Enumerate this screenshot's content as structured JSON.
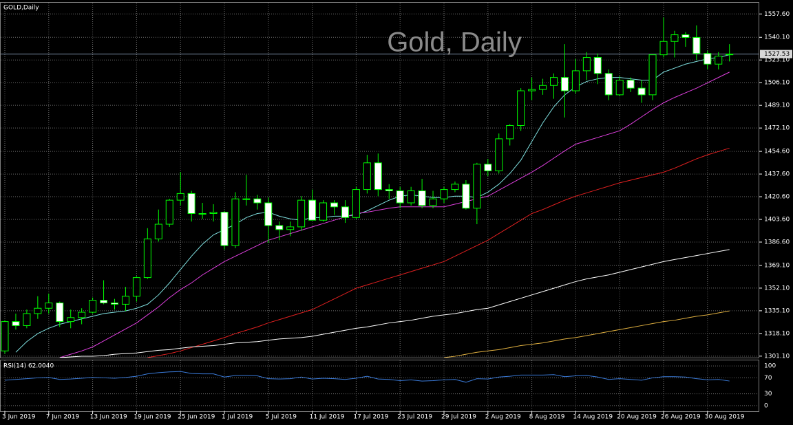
{
  "chart_data": {
    "type": "candlestick",
    "title": "GOLD,Daily",
    "watermark": "Gold, Daily",
    "categories": [
      "3 Jun 2019",
      null,
      null,
      null,
      "7 Jun 2019",
      null,
      null,
      null,
      "13 Jun 2019",
      null,
      null,
      null,
      "19 Jun 2019",
      null,
      null,
      null,
      "25 Jun 2019",
      null,
      null,
      null,
      "1 Jul 2019",
      null,
      null,
      null,
      "5 Jul 2019",
      null,
      null,
      null,
      "11 Jul 2019",
      null,
      null,
      null,
      "17 Jul 2019",
      null,
      null,
      null,
      "23 Jul 2019",
      null,
      null,
      null,
      "29 Jul 2019",
      null,
      null,
      null,
      "2 Aug 2019",
      null,
      null,
      null,
      "8 Aug 2019",
      null,
      null,
      null,
      "14 Aug 2019",
      null,
      null,
      null,
      "20 Aug 2019",
      null,
      null,
      null,
      "26 Aug 2019",
      null,
      null,
      null,
      "30 Aug 2019",
      null,
      null
    ],
    "open": [
      1305,
      1327,
      1324,
      1333,
      1337,
      1341,
      1327,
      1330,
      1334,
      1343,
      1341,
      1340,
      1346,
      1360,
      1389,
      1400,
      1418,
      1423,
      1408,
      1408,
      1409,
      1384,
      1419,
      1419,
      1416,
      1399,
      1396,
      1398,
      1418,
      1403,
      1416,
      1413,
      1405,
      1426,
      1446,
      1426,
      1425,
      1416,
      1425,
      1414,
      1419,
      1426,
      1430,
      1412,
      1445,
      1440,
      1464,
      1474,
      1500,
      1501,
      1504,
      1510,
      1500,
      1515,
      1525,
      1513,
      1497,
      1508,
      1502,
      1497,
      1527,
      1537,
      1542,
      1540,
      1528,
      1520,
      1527
    ],
    "high": [
      1328,
      1333,
      1336,
      1346,
      1348,
      1342,
      1336,
      1337,
      1345,
      1358,
      1344,
      1353,
      1361,
      1397,
      1411,
      1419,
      1439,
      1425,
      1416,
      1415,
      1410,
      1424,
      1437,
      1422,
      1420,
      1402,
      1402,
      1421,
      1426,
      1418,
      1418,
      1418,
      1428,
      1452,
      1453,
      1430,
      1428,
      1428,
      1434,
      1425,
      1428,
      1432,
      1433,
      1446,
      1449,
      1468,
      1475,
      1502,
      1510,
      1509,
      1513,
      1535,
      1524,
      1529,
      1528,
      1516,
      1511,
      1510,
      1508,
      1527,
      1555,
      1545,
      1544,
      1549,
      1530,
      1529,
      1535
    ],
    "low": [
      1303,
      1321,
      1322,
      1329,
      1333,
      1323,
      1322,
      1325,
      1333,
      1340,
      1336,
      1335,
      1342,
      1359,
      1387,
      1398,
      1414,
      1402,
      1404,
      1402,
      1381,
      1382,
      1414,
      1411,
      1386,
      1388,
      1391,
      1395,
      1403,
      1402,
      1407,
      1401,
      1404,
      1423,
      1421,
      1419,
      1412,
      1414,
      1412,
      1412,
      1416,
      1424,
      1411,
      1400,
      1436,
      1438,
      1459,
      1470,
      1493,
      1497,
      1494,
      1480,
      1498,
      1508,
      1505,
      1493,
      1496,
      1499,
      1491,
      1493,
      1525,
      1525,
      1533,
      1523,
      1516,
      1516,
      1522
    ],
    "close": [
      1327,
      1324,
      1333,
      1337,
      1341,
      1327,
      1330,
      1334,
      1343,
      1341,
      1340,
      1346,
      1360,
      1389,
      1400,
      1418,
      1423,
      1408,
      1408,
      1409,
      1384,
      1419,
      1419,
      1416,
      1399,
      1396,
      1398,
      1418,
      1403,
      1416,
      1413,
      1405,
      1426,
      1446,
      1426,
      1425,
      1416,
      1425,
      1414,
      1419,
      1426,
      1430,
      1412,
      1445,
      1440,
      1464,
      1474,
      1500,
      1501,
      1504,
      1510,
      1500,
      1515,
      1525,
      1513,
      1497,
      1508,
      1502,
      1497,
      1527,
      1537,
      1542,
      1540,
      1528,
      1520,
      1526,
      1527.53
    ],
    "up_color": "#00ff00",
    "bull_body": "#000000",
    "bear_body": "#ffffff",
    "ylim": [
      1300,
      1566
    ],
    "yticks": [
      {
        "value": 1301.1,
        "label": "1301.10"
      },
      {
        "value": 1318.1,
        "label": "1318.10"
      },
      {
        "value": 1335.1,
        "label": "1335.10"
      },
      {
        "value": 1352.1,
        "label": "1352.10"
      },
      {
        "value": 1369.1,
        "label": "1369.10"
      },
      {
        "value": 1386.6,
        "label": "1386.60"
      },
      {
        "value": 1403.6,
        "label": "1403.60"
      },
      {
        "value": 1420.6,
        "label": "1420.60"
      },
      {
        "value": 1437.6,
        "label": "1437.60"
      },
      {
        "value": 1454.6,
        "label": "1454.60"
      },
      {
        "value": 1472.1,
        "label": "1472.10"
      },
      {
        "value": 1489.1,
        "label": "1489.10"
      },
      {
        "value": 1506.1,
        "label": "1506.10"
      },
      {
        "value": 1523.1,
        "label": "1523.10"
      },
      {
        "value": 1540.1,
        "label": "1540.10"
      },
      {
        "value": 1557.6,
        "label": "1557.60"
      }
    ],
    "grid": true,
    "current_price": {
      "value": 1527.53,
      "label": "1527.53"
    },
    "series": [
      {
        "color": "#7fe0e0",
        "values": [
          null,
          1304,
          1312,
          1318,
          1322,
          1325,
          1327,
          1329,
          1331,
          1333,
          1334,
          1335,
          1337,
          1340,
          1347,
          1356,
          1366,
          1376,
          1385,
          1392,
          1396,
          1400,
          1405,
          1408,
          1409,
          1406,
          1404,
          1403,
          1405,
          1405,
          1406,
          1406,
          1407,
          1410,
          1414,
          1418,
          1421,
          1422,
          1421,
          1420,
          1420,
          1421,
          1421,
          1420,
          1424,
          1430,
          1438,
          1448,
          1462,
          1476,
          1488,
          1497,
          1503,
          1507,
          1509,
          1510,
          1510,
          1509,
          1508,
          1508,
          1514,
          1517,
          1520,
          1522,
          1524,
          1525,
          1527
        ]
      },
      {
        "color": "#e040e0",
        "values": [
          null,
          null,
          null,
          null,
          null,
          1300,
          1302.5,
          1305,
          1308,
          1312.5,
          1317,
          1321.5,
          1326,
          1332,
          1338,
          1345,
          1351,
          1356,
          1362,
          1367,
          1372,
          1376,
          1380,
          1384,
          1388,
          1390.5,
          1393,
          1395.5,
          1398,
          1400.5,
          1403,
          1405.5,
          1408,
          1409,
          1410.5,
          1412,
          1413,
          1413,
          1413,
          1413,
          1413,
          1415,
          1417,
          1419,
          1421,
          1425.5,
          1430,
          1434.5,
          1439,
          1444,
          1449.5,
          1455,
          1460,
          1462.5,
          1465,
          1467.5,
          1470,
          1475,
          1480.5,
          1486,
          1491,
          1495,
          1498.5,
          1502,
          1506,
          1510,
          1514
        ]
      },
      {
        "color": "#e02020",
        "values": [
          null,
          null,
          null,
          null,
          null,
          null,
          null,
          null,
          null,
          null,
          null,
          null,
          null,
          1300,
          1301.5,
          1303,
          1305,
          1307.5,
          1310,
          1312.5,
          1315,
          1318,
          1320.5,
          1323,
          1326,
          1328.5,
          1331,
          1333.5,
          1336,
          1340,
          1344,
          1348,
          1352,
          1354.5,
          1357,
          1359.5,
          1362,
          1364.5,
          1367,
          1369.5,
          1372,
          1376,
          1380,
          1384,
          1388,
          1393,
          1398,
          1403,
          1408,
          1411,
          1414.5,
          1418,
          1421,
          1423.5,
          1426,
          1428.5,
          1431,
          1433,
          1435,
          1437,
          1439,
          1442,
          1445.5,
          1449,
          1452,
          1454.5,
          1457
        ]
      },
      {
        "color": "#ffffff",
        "values": [
          null,
          null,
          null,
          null,
          null,
          1300,
          1300.5,
          1301,
          1301,
          1301.5,
          1302.5,
          1303,
          1303.5,
          1304.5,
          1305.5,
          1306,
          1307,
          1308,
          1308.5,
          1309,
          1310,
          1311,
          1311.5,
          1312,
          1313,
          1314,
          1314.5,
          1315,
          1316,
          1317.5,
          1319,
          1320.5,
          1322,
          1323,
          1324.5,
          1326,
          1327,
          1328,
          1329.5,
          1331,
          1332,
          1333,
          1334.5,
          1336,
          1337,
          1339.5,
          1342,
          1344.5,
          1347,
          1349.5,
          1352,
          1354.5,
          1357,
          1359,
          1360.5,
          1362,
          1364,
          1366,
          1368,
          1370,
          1372,
          1373.5,
          1375,
          1376.5,
          1378,
          1379.5,
          1381
        ]
      },
      {
        "color": "#e0b040",
        "values": [
          null,
          null,
          null,
          null,
          null,
          null,
          null,
          null,
          null,
          null,
          null,
          null,
          null,
          null,
          null,
          null,
          null,
          null,
          null,
          null,
          null,
          null,
          null,
          null,
          null,
          null,
          null,
          null,
          null,
          null,
          null,
          null,
          null,
          null,
          null,
          null,
          null,
          null,
          null,
          null,
          1300,
          1301,
          1302.5,
          1304,
          1305,
          1306,
          1307.5,
          1309,
          1310,
          1311,
          1312.5,
          1314,
          1315,
          1316.5,
          1318,
          1319.5,
          1321,
          1322.5,
          1324,
          1325.5,
          1327,
          1328,
          1329.5,
          1331,
          1332,
          1333.5,
          1335
        ]
      }
    ],
    "indicator": {
      "label": "RSI(14) 62.0040",
      "color": "#3a7ad8",
      "ylim": [
        -14,
        114
      ],
      "yticks": [
        100,
        70,
        30,
        0
      ],
      "values": [
        64,
        66,
        68,
        70,
        71,
        66,
        67,
        69,
        71,
        70,
        69,
        71,
        74,
        80,
        83,
        85,
        86,
        81,
        80,
        80,
        72,
        76,
        76,
        75,
        68,
        67,
        68,
        72,
        67,
        69,
        68,
        66,
        69,
        74,
        67,
        66,
        63,
        65,
        62,
        63,
        65,
        66,
        59,
        68,
        67,
        72,
        74,
        77,
        77,
        77,
        78,
        73,
        75,
        76,
        72,
        66,
        68,
        66,
        64,
        70,
        73,
        73,
        72,
        68,
        65,
        66,
        62.004
      ]
    }
  }
}
